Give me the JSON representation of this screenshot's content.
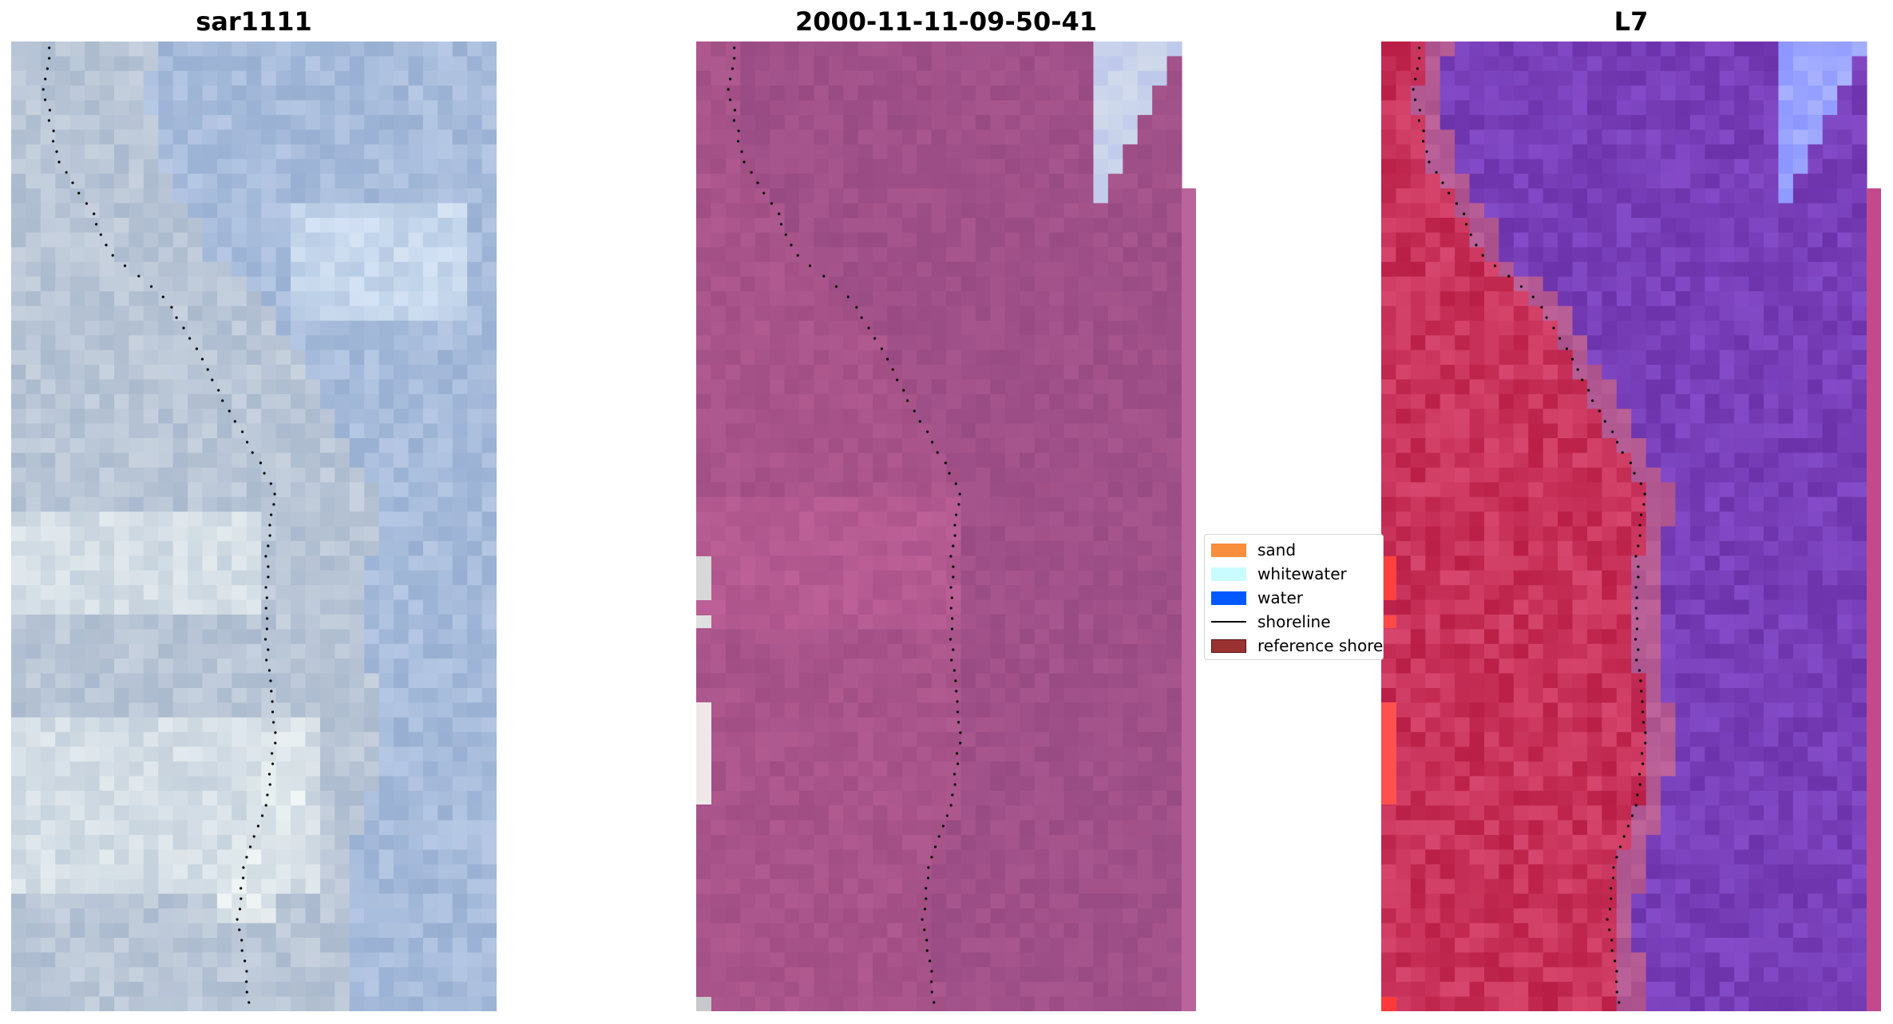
{
  "panels": [
    {
      "title": "sar1111",
      "palette": "sar"
    },
    {
      "title": "2000-11-11-09-50-41",
      "palette": "rgb"
    },
    {
      "title": "L7",
      "palette": "false"
    }
  ],
  "legend": {
    "items": [
      {
        "label": "sand",
        "kind": "patch",
        "color": "#f98e3c"
      },
      {
        "label": "whitewater",
        "kind": "patch",
        "color": "#c8fcff"
      },
      {
        "label": "water",
        "kind": "patch",
        "color": "#0059ff"
      },
      {
        "label": "shoreline",
        "kind": "line",
        "color": "#000000"
      },
      {
        "label": "reference shore",
        "kind": "patch",
        "color": "#9b3232"
      }
    ]
  },
  "colors": {
    "shoreline_dots": "#000000",
    "sar_base": "#b4c6d8",
    "rgb_base": "#a4568a",
    "false_land": "#c8204a",
    "false_water": "#7a35a6"
  }
}
